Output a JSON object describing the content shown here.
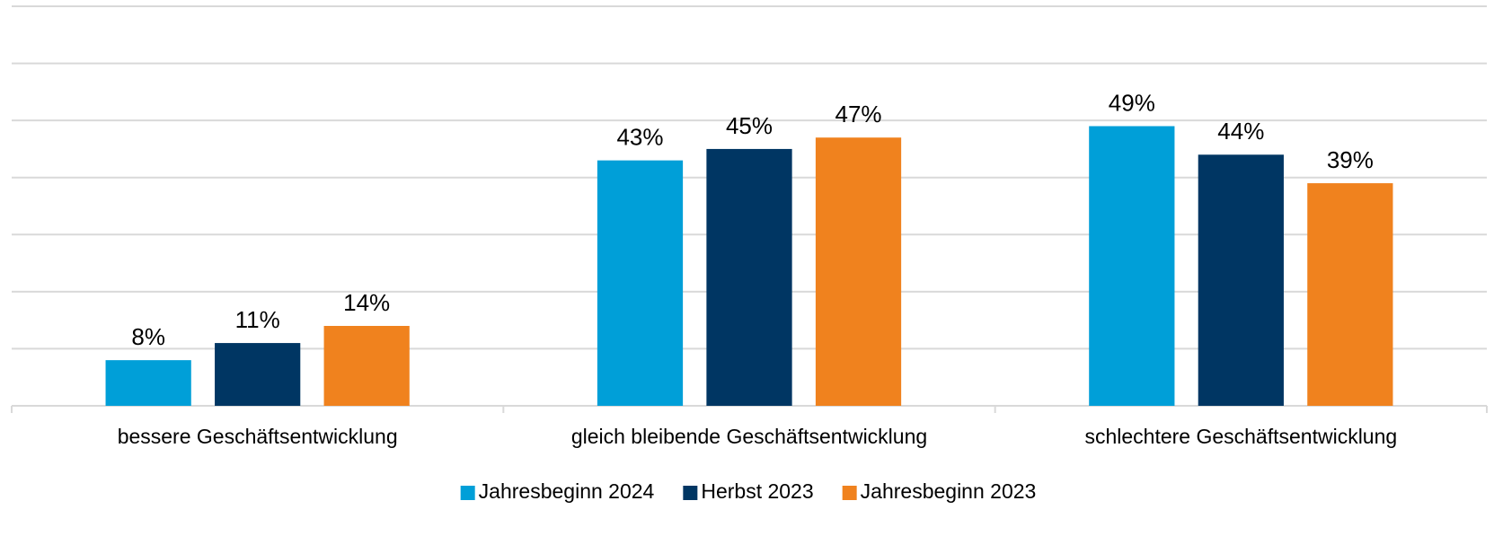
{
  "chart_data": {
    "type": "bar",
    "categories": [
      "bessere Geschäftsentwicklung",
      "gleich bleibende Geschäftsentwicklung",
      "schlechtere Geschäftsentwicklung"
    ],
    "series": [
      {
        "name": "Jahresbeginn 2024",
        "color": "#009fd8",
        "values": [
          8,
          43,
          49
        ],
        "value_labels": [
          "8%",
          "43%",
          "49%"
        ]
      },
      {
        "name": "Herbst 2023",
        "color": "#003663",
        "values": [
          11,
          45,
          44
        ],
        "value_labels": [
          "11%",
          "45%",
          "44%"
        ]
      },
      {
        "name": "Jahresbeginn 2023",
        "color": "#f0821e",
        "values": [
          14,
          47,
          39
        ],
        "value_labels": [
          "14%",
          "47%",
          "39%"
        ]
      }
    ],
    "ylim": [
      0,
      70
    ],
    "yticks": [
      0,
      10,
      20,
      30,
      40,
      50,
      60,
      70
    ],
    "grid": true,
    "legend": "bottom"
  }
}
